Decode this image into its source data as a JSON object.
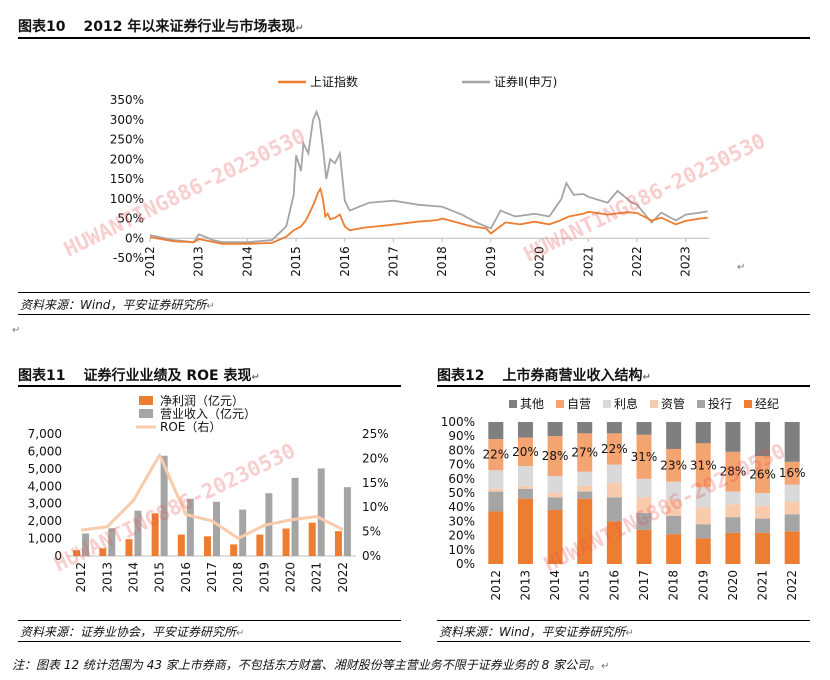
{
  "fig10": {
    "number": "图表10",
    "title": "2012 年以来证券行业与市场表现",
    "source": "资料来源：Wind，平安证券研究所"
  },
  "fig11": {
    "number": "图表11",
    "title": "证券行业业绩及 ROE 表现",
    "source": "资料来源：证券业协会，平安证券研究所"
  },
  "fig12": {
    "number": "图表12",
    "title": "上市券商营业收入结构",
    "source": "资料来源：Wind，平安证券研究所"
  },
  "note": "注：图表 12 统计范围为 43 家上市券商，不包括东方财富、湘财股份等主营业务不限于证券业务的 8 家公司。",
  "watermark": "HUWANTING886-20230530",
  "chart_data": [
    {
      "type": "line",
      "series": [
        {
          "name": "上证指数",
          "color": "#ed7d31",
          "x": [
            2012.0,
            2012.5,
            2012.9,
            2013.0,
            2013.4,
            2013.5,
            2014.0,
            2014.5,
            2014.8,
            2014.95,
            2015.1,
            2015.2,
            2015.3,
            2015.38,
            2015.45,
            2015.5,
            2015.55,
            2015.6,
            2015.65,
            2015.7,
            2015.8,
            2015.9,
            2016.0,
            2016.1,
            2016.4,
            2016.9,
            2017.5,
            2017.9,
            2018.0,
            2018.3,
            2018.6,
            2018.9,
            2019.0,
            2019.3,
            2019.6,
            2019.9,
            2020.2,
            2020.4,
            2020.6,
            2020.9,
            2021.0,
            2021.4,
            2021.8,
            2022.0,
            2022.3,
            2022.5,
            2022.8,
            2023.0,
            2023.3,
            2023.45
          ],
          "y": [
            3,
            -8,
            -10,
            -2,
            -12,
            -14,
            -14,
            -12,
            4,
            20,
            30,
            45,
            70,
            92,
            115,
            125,
            100,
            55,
            62,
            48,
            52,
            60,
            30,
            20,
            27,
            33,
            42,
            46,
            50,
            40,
            30,
            25,
            12,
            40,
            35,
            42,
            35,
            44,
            55,
            62,
            67,
            60,
            66,
            64,
            45,
            52,
            35,
            44,
            50,
            52
          ]
        },
        {
          "name": "证券Ⅱ(申万)",
          "color": "#a5a5a5",
          "x": [
            2012.0,
            2012.5,
            2012.9,
            2013.0,
            2013.3,
            2013.5,
            2014.0,
            2014.5,
            2014.8,
            2014.95,
            2015.0,
            2015.1,
            2015.15,
            2015.25,
            2015.35,
            2015.42,
            2015.48,
            2015.55,
            2015.62,
            2015.7,
            2015.8,
            2015.9,
            2016.0,
            2016.1,
            2016.5,
            2017.0,
            2017.5,
            2018.0,
            2018.4,
            2018.7,
            2018.9,
            2019.0,
            2019.2,
            2019.5,
            2019.9,
            2020.2,
            2020.45,
            2020.55,
            2020.7,
            2020.9,
            2021.0,
            2021.4,
            2021.6,
            2021.9,
            2022.0,
            2022.3,
            2022.5,
            2022.8,
            2023.0,
            2023.3,
            2023.45
          ],
          "y": [
            8,
            -5,
            -10,
            10,
            -5,
            -10,
            -10,
            -5,
            30,
            110,
            210,
            170,
            240,
            215,
            300,
            320,
            300,
            230,
            150,
            200,
            190,
            215,
            95,
            70,
            90,
            95,
            85,
            80,
            60,
            40,
            30,
            25,
            70,
            55,
            62,
            55,
            100,
            140,
            110,
            112,
            105,
            90,
            120,
            90,
            85,
            40,
            65,
            45,
            60,
            65,
            68
          ]
        }
      ],
      "ylim": [
        -50,
        350
      ],
      "yticks": [
        "-50%",
        "0%",
        "50%",
        "100%",
        "150%",
        "200%",
        "250%",
        "300%",
        "350%"
      ],
      "xticks": [
        "2012",
        "2013",
        "2014",
        "2015",
        "2016",
        "2017",
        "2018",
        "2019",
        "2020",
        "2021",
        "2022",
        "2023"
      ],
      "xlim": [
        2012,
        2023.5
      ],
      "legend": "top-center"
    },
    {
      "type": "bar",
      "categories": [
        "2012",
        "2013",
        "2014",
        "2015",
        "2016",
        "2017",
        "2018",
        "2019",
        "2020",
        "2021",
        "2022"
      ],
      "series": [
        {
          "name": "净利润（亿元）",
          "color": "#ed7d31",
          "values": [
            330,
            440,
            965,
            2450,
            1230,
            1130,
            666,
            1231,
            1575,
            1911,
            1424
          ]
        },
        {
          "name": "营业收入（亿元）",
          "color": "#a5a5a5",
          "values": [
            1295,
            1592,
            2603,
            5752,
            3280,
            3113,
            2663,
            3605,
            4485,
            5024,
            3950
          ]
        },
        {
          "name": "ROE（右）",
          "color": "#f8cbad",
          "type": "line",
          "axis": "right",
          "values": [
            5.3,
            6.0,
            11.4,
            20.7,
            8.5,
            7.2,
            3.6,
            6.3,
            7.4,
            8.1,
            5.4
          ]
        }
      ],
      "ylim_left": [
        0,
        7000
      ],
      "yticks_left": [
        "0",
        "1,000",
        "2,000",
        "3,000",
        "4,000",
        "5,000",
        "6,000",
        "7,000"
      ],
      "ylim_right": [
        0,
        25
      ],
      "yticks_right": [
        "0%",
        "5%",
        "10%",
        "15%",
        "20%",
        "25%"
      ],
      "legend": "top-left"
    },
    {
      "type": "bar",
      "stacked": "percent",
      "categories": [
        "2012",
        "2013",
        "2014",
        "2015",
        "2016",
        "2017",
        "2018",
        "2019",
        "2020",
        "2021",
        "2022"
      ],
      "series": [
        {
          "name": "经纪",
          "color": "#ed7d31",
          "values": [
            37,
            46,
            38,
            46,
            30,
            24,
            21,
            18,
            22,
            22,
            23
          ]
        },
        {
          "name": "投行",
          "color": "#a5a5a5",
          "values": [
            14,
            7,
            9,
            5,
            17,
            12,
            13,
            10,
            11,
            10,
            12
          ]
        },
        {
          "name": "资管",
          "color": "#f8cbad",
          "values": [
            2,
            2,
            3,
            4,
            10,
            11,
            11,
            12,
            9,
            9,
            9
          ]
        },
        {
          "name": "利息",
          "color": "#d9d9d9",
          "values": [
            13,
            14,
            12,
            10,
            13,
            13,
            13,
            14,
            9,
            9,
            12
          ]
        },
        {
          "name": "自营",
          "color": "#f4a470",
          "values": [
            22,
            20,
            28,
            27,
            22,
            31,
            23,
            31,
            28,
            26,
            16
          ]
        },
        {
          "name": "其他",
          "color": "#7f7f7f",
          "values": [
            12,
            11,
            10,
            8,
            8,
            9,
            19,
            15,
            21,
            24,
            28
          ]
        }
      ],
      "labels": [
        "22%",
        "20%",
        "28%",
        "27%",
        "22%",
        "31%",
        "23%",
        "31%",
        "28%",
        "26%",
        "16%"
      ],
      "label_series": "自营",
      "legend_order": [
        "其他",
        "自营",
        "利息",
        "资管",
        "投行",
        "经纪"
      ],
      "ylim": [
        0,
        100
      ],
      "yticks": [
        "0%",
        "10%",
        "20%",
        "30%",
        "40%",
        "50%",
        "60%",
        "70%",
        "80%",
        "90%",
        "100%"
      ],
      "legend": "top"
    }
  ]
}
